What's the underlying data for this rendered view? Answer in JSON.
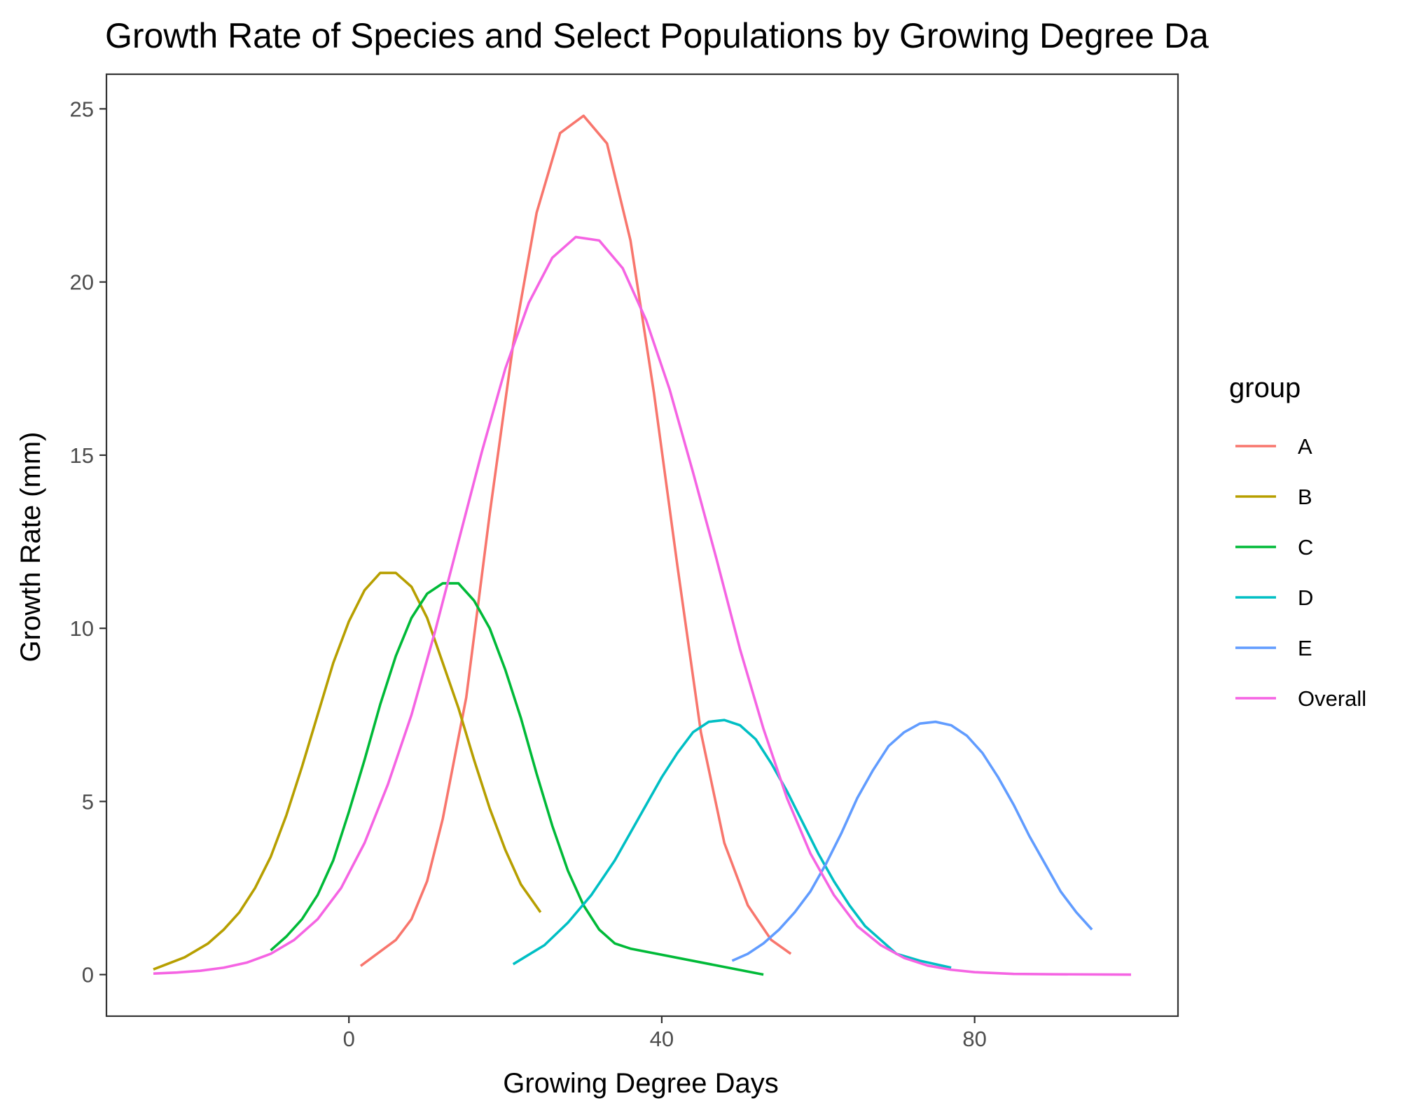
{
  "chart_data": {
    "type": "line",
    "title": "Growth Rate of Species and Select Populations by Growing Degree Da",
    "xlabel": "Growing Degree Days",
    "ylabel": "Growth Rate (mm)",
    "xlim": [
      -31,
      106
    ],
    "ylim": [
      -1.2,
      26
    ],
    "x_ticks": [
      0,
      40,
      80
    ],
    "x_tick_labels": [
      "0",
      "40",
      "80"
    ],
    "y_ticks": [
      0,
      5,
      10,
      15,
      20,
      25
    ],
    "y_tick_labels": [
      "0",
      "5",
      "10",
      "15",
      "20",
      "25"
    ],
    "grid": false,
    "legend": {
      "title": "group",
      "position": "right"
    },
    "series": [
      {
        "name": "A",
        "color": "#F8766D",
        "points": [
          [
            1.5,
            0.25
          ],
          [
            3,
            0.5
          ],
          [
            6,
            1.0
          ],
          [
            8,
            1.6
          ],
          [
            10,
            2.7
          ],
          [
            12,
            4.5
          ],
          [
            15,
            8.0
          ],
          [
            18,
            13.3
          ],
          [
            21,
            18.2
          ],
          [
            24,
            22.0
          ],
          [
            27,
            24.3
          ],
          [
            30,
            24.8
          ],
          [
            33,
            24.0
          ],
          [
            36,
            21.2
          ],
          [
            39,
            16.8
          ],
          [
            42,
            11.8
          ],
          [
            45,
            7.0
          ],
          [
            48,
            3.8
          ],
          [
            51,
            2.0
          ],
          [
            54,
            1.0
          ],
          [
            56.5,
            0.6
          ]
        ]
      },
      {
        "name": "B",
        "color": "#B79F00",
        "points": [
          [
            -25,
            0.15
          ],
          [
            -21,
            0.5
          ],
          [
            -18,
            0.9
          ],
          [
            -16,
            1.3
          ],
          [
            -14,
            1.8
          ],
          [
            -12,
            2.5
          ],
          [
            -10,
            3.4
          ],
          [
            -8,
            4.6
          ],
          [
            -6,
            6.0
          ],
          [
            -4,
            7.5
          ],
          [
            -2,
            9.0
          ],
          [
            0,
            10.2
          ],
          [
            2,
            11.1
          ],
          [
            4,
            11.6
          ],
          [
            6,
            11.6
          ],
          [
            8,
            11.2
          ],
          [
            10,
            10.3
          ],
          [
            12,
            9.0
          ],
          [
            14,
            7.7
          ],
          [
            16,
            6.2
          ],
          [
            18,
            4.8
          ],
          [
            20,
            3.6
          ],
          [
            22,
            2.6
          ],
          [
            24.5,
            1.8
          ]
        ]
      },
      {
        "name": "C",
        "color": "#00BA38",
        "points": [
          [
            -10,
            0.7
          ],
          [
            -8,
            1.1
          ],
          [
            -6,
            1.6
          ],
          [
            -4,
            2.3
          ],
          [
            -2,
            3.3
          ],
          [
            0,
            4.7
          ],
          [
            2,
            6.2
          ],
          [
            4,
            7.8
          ],
          [
            6,
            9.2
          ],
          [
            8,
            10.3
          ],
          [
            10,
            11.0
          ],
          [
            12,
            11.3
          ],
          [
            14,
            11.3
          ],
          [
            16,
            10.8
          ],
          [
            18,
            10.0
          ],
          [
            20,
            8.8
          ],
          [
            22,
            7.4
          ],
          [
            24,
            5.8
          ],
          [
            26,
            4.3
          ],
          [
            28,
            3.0
          ],
          [
            30,
            2.0
          ],
          [
            32,
            1.3
          ],
          [
            34,
            0.9
          ],
          [
            36,
            0.75
          ],
          [
            53,
            0.0
          ]
        ]
      },
      {
        "name": "D",
        "color": "#00BFC4",
        "points": [
          [
            21,
            0.3
          ],
          [
            25,
            0.85
          ],
          [
            28,
            1.5
          ],
          [
            31,
            2.3
          ],
          [
            34,
            3.3
          ],
          [
            37,
            4.5
          ],
          [
            40,
            5.7
          ],
          [
            42,
            6.4
          ],
          [
            44,
            7.0
          ],
          [
            46,
            7.3
          ],
          [
            48,
            7.35
          ],
          [
            50,
            7.2
          ],
          [
            52,
            6.8
          ],
          [
            54,
            6.1
          ],
          [
            56,
            5.3
          ],
          [
            58,
            4.4
          ],
          [
            60,
            3.5
          ],
          [
            62,
            2.7
          ],
          [
            64,
            2.0
          ],
          [
            66,
            1.4
          ],
          [
            68,
            1.0
          ],
          [
            70,
            0.6
          ],
          [
            73,
            0.4
          ],
          [
            77,
            0.2
          ]
        ]
      },
      {
        "name": "E",
        "color": "#619CFF",
        "points": [
          [
            49,
            0.4
          ],
          [
            51,
            0.6
          ],
          [
            53,
            0.9
          ],
          [
            55,
            1.3
          ],
          [
            57,
            1.8
          ],
          [
            59,
            2.4
          ],
          [
            61,
            3.2
          ],
          [
            63,
            4.1
          ],
          [
            65,
            5.1
          ],
          [
            67,
            5.9
          ],
          [
            69,
            6.6
          ],
          [
            71,
            7.0
          ],
          [
            73,
            7.25
          ],
          [
            75,
            7.3
          ],
          [
            77,
            7.2
          ],
          [
            79,
            6.9
          ],
          [
            81,
            6.4
          ],
          [
            83,
            5.7
          ],
          [
            85,
            4.9
          ],
          [
            87,
            4.0
          ],
          [
            89,
            3.2
          ],
          [
            91,
            2.4
          ],
          [
            93,
            1.8
          ],
          [
            95,
            1.3
          ]
        ]
      },
      {
        "name": "Overall",
        "color": "#F564E3",
        "points": [
          [
            -25,
            0.03
          ],
          [
            -22,
            0.06
          ],
          [
            -19,
            0.11
          ],
          [
            -16,
            0.2
          ],
          [
            -13,
            0.35
          ],
          [
            -10,
            0.6
          ],
          [
            -7,
            1.0
          ],
          [
            -4,
            1.6
          ],
          [
            -1,
            2.5
          ],
          [
            2,
            3.8
          ],
          [
            5,
            5.5
          ],
          [
            8,
            7.5
          ],
          [
            11,
            9.9
          ],
          [
            14,
            12.5
          ],
          [
            17,
            15.1
          ],
          [
            20,
            17.5
          ],
          [
            23,
            19.4
          ],
          [
            26,
            20.7
          ],
          [
            29,
            21.3
          ],
          [
            32,
            21.2
          ],
          [
            35,
            20.4
          ],
          [
            38,
            18.9
          ],
          [
            41,
            16.9
          ],
          [
            44,
            14.5
          ],
          [
            47,
            12.0
          ],
          [
            50,
            9.4
          ],
          [
            53,
            7.1
          ],
          [
            56,
            5.1
          ],
          [
            59,
            3.5
          ],
          [
            62,
            2.3
          ],
          [
            65,
            1.4
          ],
          [
            68,
            0.85
          ],
          [
            71,
            0.48
          ],
          [
            74,
            0.26
          ],
          [
            77,
            0.14
          ],
          [
            80,
            0.07
          ],
          [
            85,
            0.02
          ],
          [
            90,
            0.01
          ],
          [
            100,
            0.0
          ]
        ]
      }
    ]
  }
}
